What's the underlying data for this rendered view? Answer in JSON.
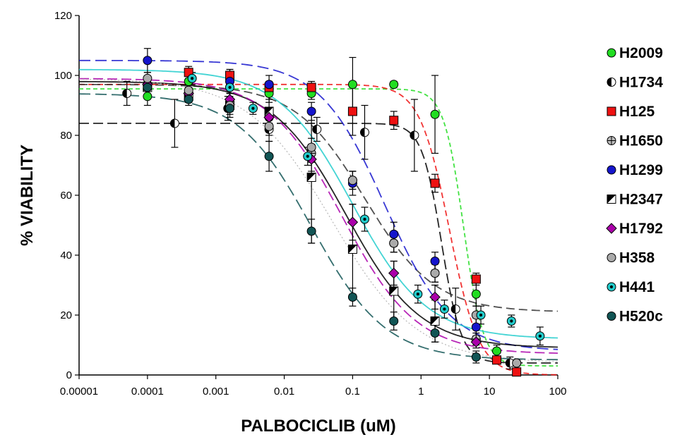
{
  "chart_data": {
    "type": "scatter",
    "title": "",
    "xlabel": "PALBOCICLIB (uM)",
    "ylabel": "% VIABILITY",
    "xscale": "log",
    "xlim": [
      1e-05,
      100
    ],
    "ylim": [
      0,
      120
    ],
    "x_ticks": [
      1e-05,
      0.0001,
      0.001,
      0.01,
      0.1,
      1,
      10,
      100
    ],
    "x_tick_labels": [
      "0.00001",
      "0.0001",
      "0.001",
      "0.01",
      "0.1",
      "1",
      "10",
      "100"
    ],
    "y_ticks": [
      0,
      20,
      40,
      60,
      80,
      100,
      120
    ],
    "y_tick_labels": [
      "0",
      "20",
      "40",
      "60",
      "80",
      "100",
      "120"
    ],
    "grid": false,
    "legend_position": "right",
    "series": [
      {
        "name": "H2009",
        "color": "#22dd22",
        "marker": "circle",
        "x": [
          0.0001,
          0.0004,
          0.0016,
          0.006,
          0.025,
          0.1,
          0.4,
          1.6,
          6.4,
          12.8,
          25
        ],
        "y": [
          93,
          98,
          96,
          94,
          94,
          97,
          97,
          87,
          27,
          8,
          4
        ],
        "err": [
          3,
          2,
          2,
          3,
          2,
          9,
          1,
          13,
          4,
          2,
          1
        ],
        "fit": {
          "top": 95.5,
          "bottom": 3,
          "ec50": 4.2,
          "hill": 3.0,
          "dash": "6,4"
        }
      },
      {
        "name": "H1734",
        "color": "#000000",
        "marker": "half-circle",
        "x": [
          5e-05,
          0.00025,
          0.0015,
          0.006,
          0.03,
          0.15,
          0.8,
          3.2,
          20
        ],
        "y": [
          94,
          84,
          89,
          82,
          82,
          81,
          80,
          22,
          4
        ],
        "err": [
          4,
          8,
          4,
          4,
          4,
          9,
          12,
          7,
          2
        ],
        "fit": {
          "top": 84,
          "bottom": 4,
          "ec50": 2.0,
          "hill": 3.0,
          "dash": "14,6"
        }
      },
      {
        "name": "H125",
        "color": "#ee1111",
        "marker": "square",
        "x": [
          0.0004,
          0.0016,
          0.006,
          0.025,
          0.1,
          0.4,
          1.6,
          6.4,
          12.8,
          25
        ],
        "y": [
          101,
          100,
          96,
          96,
          88,
          85,
          64,
          32,
          5,
          1
        ],
        "err": [
          2,
          2,
          2,
          2,
          8,
          3,
          3,
          2,
          1,
          1
        ],
        "fit": {
          "top": 97,
          "bottom": 0,
          "ec50": 2.6,
          "hill": 2.0,
          "dash": "8,5"
        }
      },
      {
        "name": "H1650",
        "color": "#333333",
        "marker": "circle-cross",
        "x": [
          0.0001,
          0.0004,
          0.0016,
          0.006,
          0.025,
          0.1,
          0.4,
          1.6,
          6.4
        ],
        "y": [
          97,
          94,
          91,
          86,
          74,
          65,
          44,
          34,
          12
        ],
        "err": [
          2,
          3,
          3,
          3,
          3,
          3,
          3,
          3,
          2
        ],
        "fit": {
          "top": 97,
          "bottom": 21,
          "ec50": 0.15,
          "hill": 0.85,
          "dash": "12,6"
        }
      },
      {
        "name": "H1299",
        "color": "#1515cc",
        "marker": "circle",
        "x": [
          0.0001,
          0.0016,
          0.006,
          0.025,
          0.1,
          0.4,
          1.6,
          6.4
        ],
        "y": [
          105,
          98,
          97,
          88,
          64,
          47,
          38,
          16
        ],
        "err": [
          4,
          4,
          3,
          3,
          4,
          4,
          3,
          3
        ],
        "fit": {
          "top": 105,
          "bottom": 8,
          "ec50": 0.3,
          "hill": 0.9,
          "dash": "16,7"
        }
      },
      {
        "name": "H2347",
        "color": "#000000",
        "marker": "half-square",
        "x": [
          0.0001,
          0.0004,
          0.0016,
          0.006,
          0.025,
          0.1,
          0.4,
          1.6
        ],
        "y": [
          96,
          93,
          90,
          88,
          66,
          42,
          28,
          18
        ],
        "err": [
          3,
          2,
          3,
          4,
          22,
          15,
          10,
          7
        ],
        "fit": {
          "top": 98,
          "bottom": 9,
          "ec50": 0.08,
          "hill": 0.8,
          "dash": ""
        }
      },
      {
        "name": "H1792",
        "color": "#aa00aa",
        "marker": "diamond",
        "x": [
          0.0001,
          0.0004,
          0.0016,
          0.006,
          0.025,
          0.1,
          0.4,
          1.6,
          6.4
        ],
        "y": [
          97,
          94,
          92,
          86,
          72,
          51,
          34,
          26,
          11
        ],
        "err": [
          2,
          2,
          2,
          3,
          4,
          6,
          4,
          4,
          2
        ],
        "fit": {
          "top": 99,
          "bottom": 7,
          "ec50": 0.07,
          "hill": 0.8,
          "dash": "14,6"
        }
      },
      {
        "name": "H358",
        "color": "#aaaaaa",
        "marker": "circle",
        "x": [
          0.0001,
          0.0004,
          0.0016,
          0.006,
          0.025,
          0.1,
          0.4,
          1.6,
          6.4,
          25
        ],
        "y": [
          99,
          95,
          90,
          83,
          76,
          65,
          44,
          34,
          20,
          4
        ],
        "err": [
          2,
          2,
          2,
          3,
          3,
          3,
          3,
          3,
          3,
          1
        ],
        "fit": {
          "top": 99,
          "bottom": 4,
          "ec50": 0.05,
          "hill": 0.7,
          "dash": "2,3"
        }
      },
      {
        "name": "H441",
        "color": "#22cccc",
        "marker": "circle-dot",
        "x": [
          0.00045,
          0.0016,
          0.0035,
          0.022,
          0.15,
          0.9,
          2.2,
          7.5,
          21,
          55
        ],
        "y": [
          99,
          96,
          89,
          73,
          52,
          27,
          22,
          20,
          18,
          13
        ],
        "err": [
          2,
          2,
          2,
          3,
          4,
          3,
          3,
          3,
          2,
          3
        ],
        "fit": {
          "top": 102,
          "bottom": 12,
          "ec50": 0.1,
          "hill": 0.8,
          "dash": ""
        }
      },
      {
        "name": "H520c",
        "color": "#115555",
        "marker": "circle",
        "x": [
          0.0001,
          0.0004,
          0.0016,
          0.006,
          0.025,
          0.1,
          0.4,
          1.6,
          6.4
        ],
        "y": [
          96,
          92,
          89,
          73,
          48,
          26,
          18,
          14,
          6
        ],
        "err": [
          3,
          2,
          3,
          5,
          4,
          3,
          3,
          3,
          2
        ],
        "fit": {
          "top": 94,
          "bottom": 5,
          "ec50": 0.025,
          "hill": 0.8,
          "dash": "16,7"
        }
      }
    ]
  }
}
